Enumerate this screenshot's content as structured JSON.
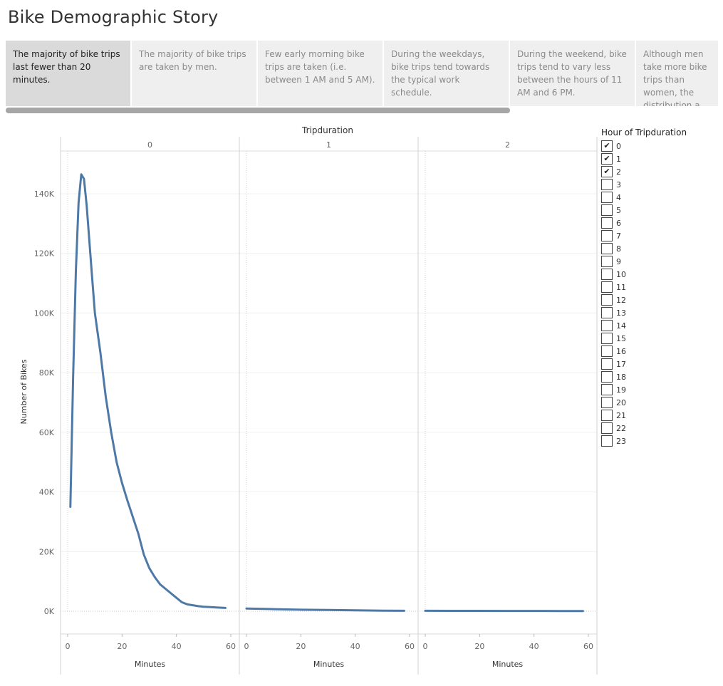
{
  "story": {
    "title": "Bike Demographic Story",
    "points": [
      {
        "text": "The majority of bike trips last fewer than 20 minutes.",
        "active": true
      },
      {
        "text": "The majority of bike trips are taken by men.",
        "active": false
      },
      {
        "text": "Few early morning bike trips are taken (i.e. between 1 AM and 5 AM).",
        "active": false
      },
      {
        "text": "During the weekdays, bike trips tend towards the typical work schedule.",
        "active": false
      },
      {
        "text": "During the weekend, bike trips tend to vary less between the hours of 11 AM and 6 PM.",
        "active": false
      },
      {
        "text": "Although men take more bike trips than women, the distribution a..",
        "active": false
      }
    ]
  },
  "legend": {
    "title": "Hour of Tripduration",
    "items": [
      {
        "label": "0",
        "checked": true
      },
      {
        "label": "1",
        "checked": true
      },
      {
        "label": "2",
        "checked": true
      },
      {
        "label": "3",
        "checked": false
      },
      {
        "label": "4",
        "checked": false
      },
      {
        "label": "5",
        "checked": false
      },
      {
        "label": "6",
        "checked": false
      },
      {
        "label": "7",
        "checked": false
      },
      {
        "label": "8",
        "checked": false
      },
      {
        "label": "9",
        "checked": false
      },
      {
        "label": "10",
        "checked": false
      },
      {
        "label": "11",
        "checked": false
      },
      {
        "label": "12",
        "checked": false
      },
      {
        "label": "13",
        "checked": false
      },
      {
        "label": "14",
        "checked": false
      },
      {
        "label": "15",
        "checked": false
      },
      {
        "label": "16",
        "checked": false
      },
      {
        "label": "17",
        "checked": false
      },
      {
        "label": "18",
        "checked": false
      },
      {
        "label": "19",
        "checked": false
      },
      {
        "label": "20",
        "checked": false
      },
      {
        "label": "21",
        "checked": false
      },
      {
        "label": "22",
        "checked": false
      },
      {
        "label": "23",
        "checked": false
      }
    ],
    "check_glyph": "✔"
  },
  "chart_data": {
    "type": "line",
    "title": "Tripduration",
    "ylabel": "Number of Bikes",
    "xlabel": "Minutes",
    "xlim": [
      0,
      60
    ],
    "ylim": [
      0,
      150000
    ],
    "xticks": [
      0,
      20,
      40,
      60
    ],
    "xtick_labels": [
      "0",
      "20",
      "40",
      "60"
    ],
    "yticks": [
      0,
      20000,
      40000,
      60000,
      80000,
      100000,
      120000,
      140000
    ],
    "ytick_labels": [
      "0K",
      "20K",
      "40K",
      "60K",
      "80K",
      "100K",
      "120K",
      "140K"
    ],
    "line_color": "#4e79a7",
    "grid": true,
    "panels": [
      {
        "label": "0",
        "x": [
          1,
          2,
          3,
          4,
          5,
          6,
          7,
          8,
          9,
          10,
          12,
          14,
          16,
          18,
          20,
          22,
          24,
          26,
          28,
          30,
          32,
          34,
          36,
          38,
          40,
          42,
          44,
          46,
          48,
          50,
          52,
          54,
          56,
          58
        ],
        "y": [
          35000,
          78000,
          114000,
          137000,
          146500,
          145000,
          136000,
          124000,
          112000,
          100000,
          87000,
          72000,
          60000,
          50000,
          43000,
          37000,
          31500,
          26000,
          19000,
          14500,
          11500,
          9000,
          7500,
          6000,
          4500,
          3000,
          2300,
          2000,
          1700,
          1500,
          1400,
          1300,
          1200,
          1100
        ]
      },
      {
        "label": "1",
        "x": [
          0,
          10,
          20,
          30,
          40,
          50,
          58
        ],
        "y": [
          900,
          700,
          500,
          400,
          300,
          200,
          150
        ]
      },
      {
        "label": "2",
        "x": [
          0,
          10,
          20,
          30,
          40,
          50,
          58
        ],
        "y": [
          150,
          130,
          110,
          100,
          90,
          80,
          70
        ]
      }
    ]
  }
}
